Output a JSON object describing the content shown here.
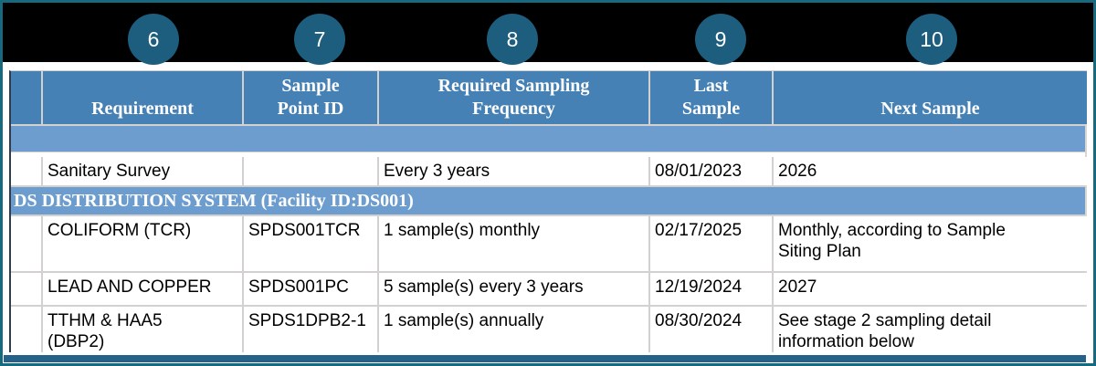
{
  "callouts": [
    "6",
    "7",
    "8",
    "9",
    "10"
  ],
  "table": {
    "header": {
      "blank": "",
      "requirement": "Requirement",
      "sample_point_id": "Sample\nPoint ID",
      "required_sampling_frequency": "Required Sampling\nFrequency",
      "last_sample": "Last\nSample",
      "next_sample": "Next Sample"
    },
    "rows": {
      "sanitary_survey": {
        "requirement": "Sanitary Survey",
        "sample_point_id": "",
        "frequency": "Every 3 years",
        "last_sample": "08/01/2023",
        "next_sample": "2026"
      },
      "section_ds_distribution": "DS DISTRIBUTION SYSTEM (Facility ID:DS001)",
      "coliform_tcr": {
        "requirement": "COLIFORM (TCR)",
        "sample_point_id": "SPDS001TCR",
        "frequency": "1 sample(s) monthly",
        "last_sample": "02/17/2025",
        "next_sample": "Monthly, according to Sample\nSiting Plan"
      },
      "lead_and_copper": {
        "requirement": "LEAD AND COPPER",
        "sample_point_id": "SPDS001PC",
        "frequency": "5 sample(s) every 3 years",
        "last_sample": "12/19/2024",
        "next_sample": "2027"
      },
      "tthm_haa5_dbp2": {
        "requirement": "TTHM & HAA5\n(DBP2)",
        "sample_point_id": "SPDS1DPB2-1",
        "frequency": "1 sample(s) annually",
        "last_sample": "08/30/2024",
        "next_sample": "See stage 2 sampling detail\ninformation below"
      }
    }
  },
  "colors": {
    "frame_border": "#17697f",
    "banner_bg": "#000000",
    "callout_circle": "#1d5e7e",
    "header_bg": "#4681b5",
    "band_bg": "#6d9dce",
    "section_bg": "#6d9dce",
    "grid_line": "#d3d0d0",
    "bottom_bar": "#26618a"
  }
}
